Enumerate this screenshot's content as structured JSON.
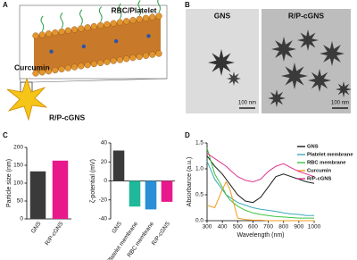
{
  "panels": {
    "a": {
      "label": "A",
      "membrane_label": "RBC/Platelet",
      "drug_label": "Curcumin",
      "particle_label": "R/P-cGNS"
    },
    "b": {
      "label": "B",
      "images": [
        {
          "title": "GNS",
          "scale_bar": "100 nm"
        },
        {
          "title": "R/P-cGNS",
          "scale_bar": "100 nm"
        }
      ]
    },
    "c": {
      "label": "C"
    },
    "d": {
      "label": "D"
    }
  },
  "chart_data": [
    {
      "type": "bar",
      "y_label": "Particle size (nm)",
      "categories": [
        "GNS",
        "R/P-cGNS"
      ],
      "values": [
        133,
        163
      ],
      "colors": [
        "#3a3a3a",
        "#e8198b"
      ],
      "ylim": [
        0,
        200
      ],
      "yticks": [
        0,
        50,
        100,
        150,
        200
      ]
    },
    {
      "type": "bar",
      "y_label": "ζ-potential (mV)",
      "categories": [
        "GNS",
        "Platelet membrane",
        "RBC membrane",
        "R/P-cGNS"
      ],
      "values": [
        32,
        -27,
        -30,
        -22
      ],
      "colors": [
        "#3a3a3a",
        "#1fb89a",
        "#2a8fd6",
        "#e8198b"
      ],
      "ylim": [
        -40,
        40
      ],
      "yticks": [
        -40,
        -20,
        0,
        20,
        40
      ]
    },
    {
      "type": "line",
      "x_label": "Wavelength (nm)",
      "y_label": "Absorbance (a.u.)",
      "x": [
        300,
        350,
        400,
        425,
        450,
        500,
        550,
        600,
        650,
        700,
        750,
        800,
        850,
        900,
        950,
        1000
      ],
      "xlim": [
        300,
        1000
      ],
      "xticks": [
        300,
        400,
        500,
        600,
        700,
        800,
        900,
        1000
      ],
      "ylim": [
        0,
        1.5
      ],
      "yticks": [
        {
          "value": 0,
          "label": "0.0"
        },
        0.5,
        {
          "value": 1,
          "label": "1.0"
        },
        1.5
      ],
      "legend": "upper right",
      "series": [
        {
          "name": "GNS",
          "color": "#1a1a1a",
          "values": [
            1.25,
            1.05,
            0.9,
            0.8,
            0.7,
            0.5,
            0.38,
            0.35,
            0.45,
            0.65,
            0.85,
            0.9,
            0.85,
            0.8,
            0.75,
            0.72
          ]
        },
        {
          "name": "Platelet membrane",
          "color": "#3aa9b8",
          "values": [
            1.15,
            0.8,
            0.6,
            0.5,
            0.45,
            0.35,
            0.3,
            0.25,
            0.22,
            0.2,
            0.18,
            0.15,
            0.13,
            0.12,
            0.1,
            0.1
          ]
        },
        {
          "name": "RBC membrane",
          "color": "#3cc43c",
          "values": [
            1.4,
            0.9,
            0.65,
            0.5,
            0.4,
            0.28,
            0.2,
            0.15,
            0.12,
            0.1,
            0.08,
            0.07,
            0.06,
            0.05,
            0.05,
            0.05
          ]
        },
        {
          "name": "Curcumin",
          "color": "#f39a1e",
          "values": [
            0.3,
            0.25,
            0.6,
            0.75,
            0.6,
            0.05,
            0.02,
            0.01,
            0.01,
            0,
            0,
            0,
            0,
            0,
            0,
            0
          ]
        },
        {
          "name": "R/P-cGNS",
          "color": "#e0338f",
          "values": [
            1.3,
            1.2,
            1.1,
            1.05,
            0.98,
            0.85,
            0.78,
            0.75,
            0.8,
            0.95,
            1.05,
            1.1,
            1.02,
            0.95,
            0.9,
            0.85
          ]
        }
      ]
    }
  ]
}
